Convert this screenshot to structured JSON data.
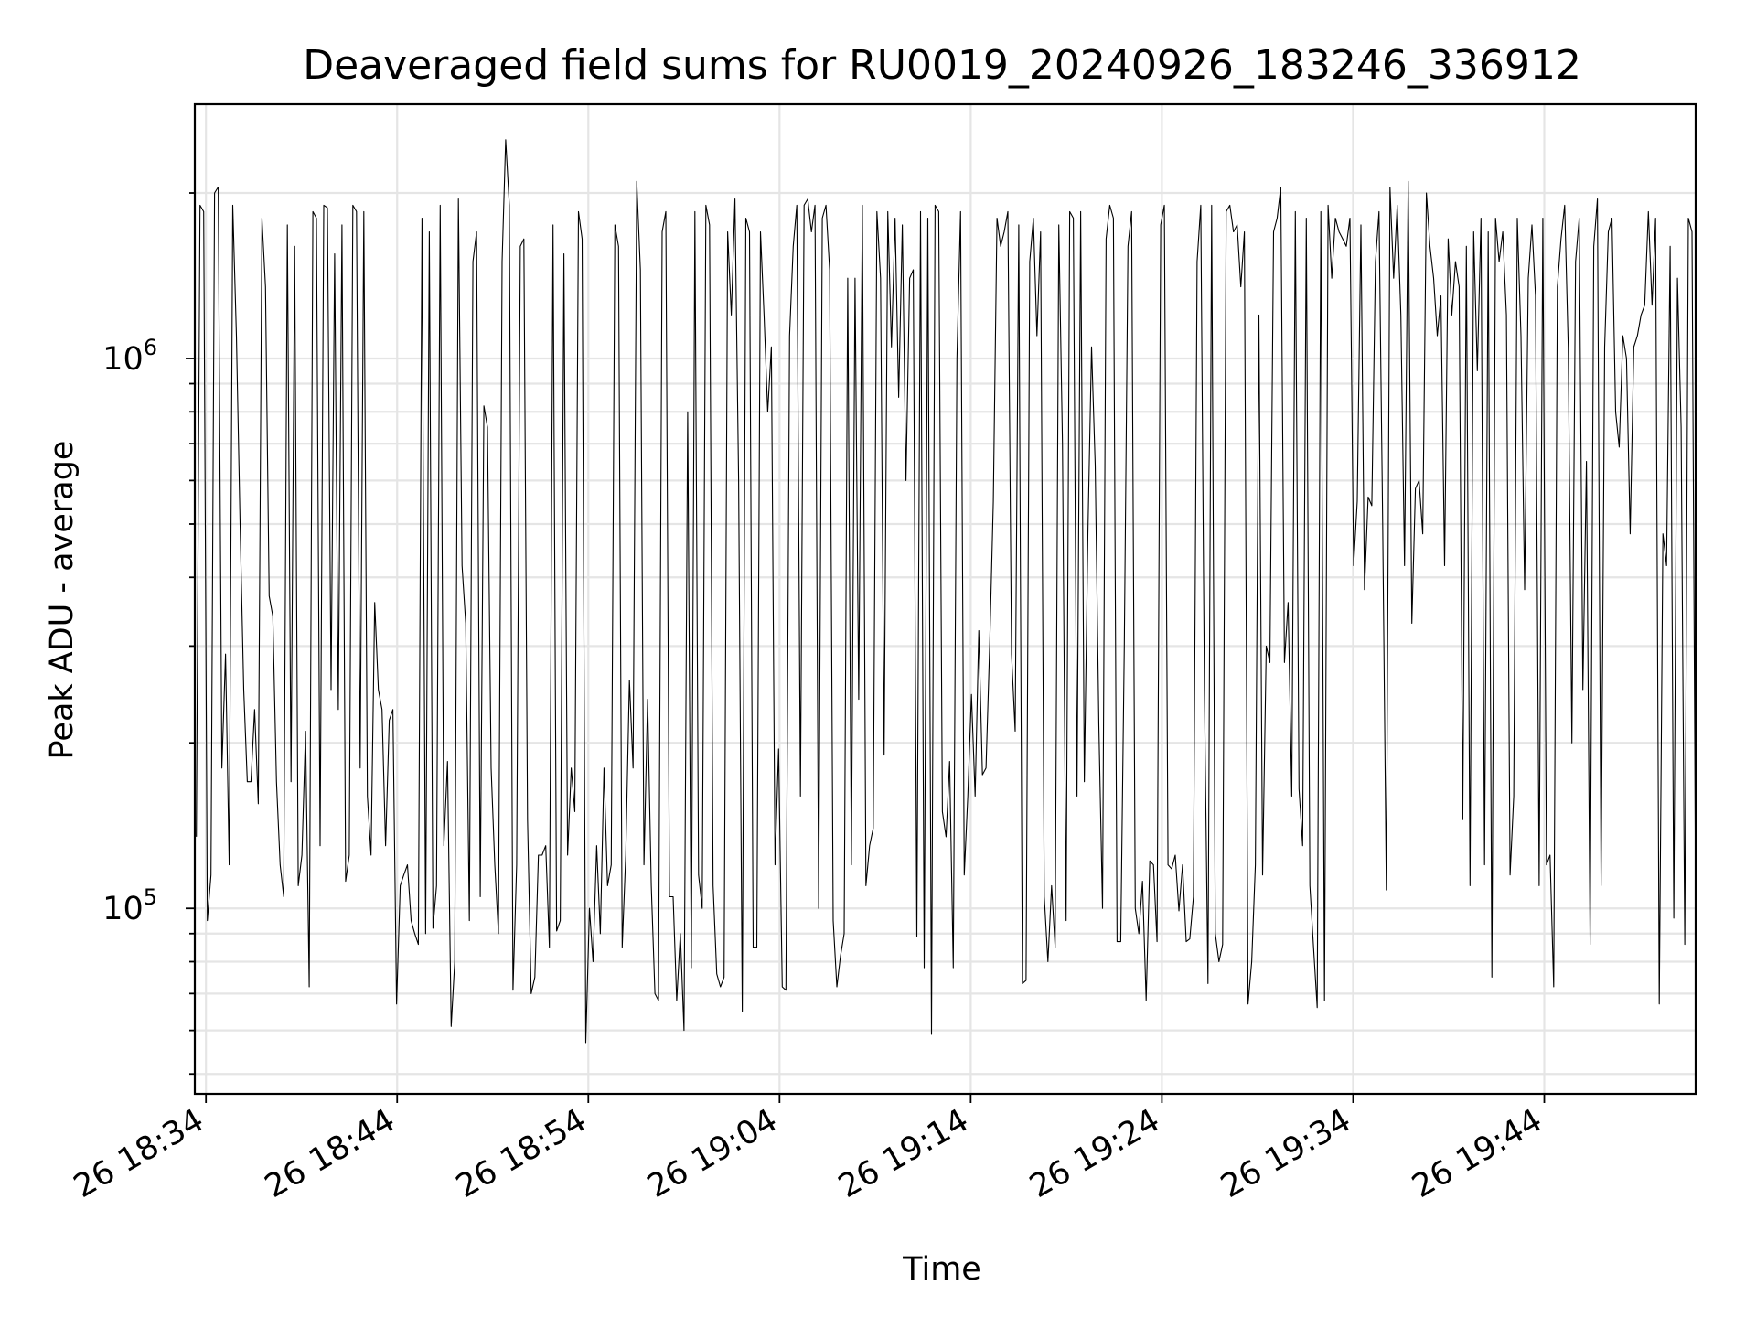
{
  "chart_data": {
    "type": "line",
    "title": "Deaveraged field sums for RU0019_20240926_183246_336912",
    "xlabel": "Time",
    "ylabel": "Peak ADU - average",
    "yscale": "log",
    "ylim": [
      46000,
      2900000
    ],
    "x_range": [
      "2024-09-26 18:33:25",
      "2024-09-26 19:51:55"
    ],
    "grid": true,
    "x_ticks": [
      "26 18:34",
      "26 18:44",
      "26 18:54",
      "26 19:04",
      "26 19:14",
      "26 19:24",
      "26 19:34",
      "26 19:44"
    ],
    "y_ticks": [
      {
        "base": "10",
        "exp": "5",
        "value": 100000
      },
      {
        "base": "10",
        "exp": "6",
        "value": 1000000
      }
    ],
    "series": [
      {
        "color": "#000000",
        "x_start": "2024-09-26 18:33:30",
        "x_end": "2024-09-26 19:51:55",
        "values": [
          135000,
          1900000,
          1850000,
          95000,
          115000,
          2000000,
          2050000,
          180000,
          290000,
          120000,
          1900000,
          1100000,
          500000,
          250000,
          170000,
          170000,
          230000,
          155000,
          1800000,
          1350000,
          370000,
          340000,
          170000,
          120000,
          105000,
          1750000,
          170000,
          1600000,
          110000,
          125000,
          210000,
          72000,
          1850000,
          1800000,
          130000,
          1900000,
          1880000,
          250000,
          1550000,
          230000,
          1750000,
          112000,
          125000,
          1900000,
          1850000,
          180000,
          1850000,
          160000,
          125000,
          360000,
          250000,
          230000,
          130000,
          220000,
          230000,
          67000,
          110000,
          115000,
          120000,
          95000,
          90000,
          86000,
          1800000,
          90000,
          1700000,
          92000,
          110000,
          1900000,
          130000,
          185000,
          61000,
          80000,
          1950000,
          420000,
          330000,
          95000,
          1500000,
          1700000,
          105000,
          820000,
          750000,
          180000,
          120000,
          90000,
          1500000,
          2500000,
          1900000,
          71000,
          120000,
          1600000,
          1650000,
          145000,
          70000,
          75000,
          125000,
          125000,
          130000,
          85000,
          1750000,
          91000,
          95000,
          1550000,
          125000,
          180000,
          150000,
          1850000,
          1650000,
          57000,
          100000,
          80000,
          130000,
          90000,
          180000,
          110000,
          120000,
          1750000,
          1600000,
          85000,
          125000,
          260000,
          180000,
          2100000,
          1450000,
          120000,
          240000,
          110000,
          70000,
          68000,
          1700000,
          1850000,
          105000,
          105000,
          68000,
          90000,
          60000,
          800000,
          78000,
          1850000,
          115000,
          100000,
          1900000,
          1750000,
          110000,
          76000,
          72000,
          75000,
          1700000,
          1200000,
          1950000,
          600000,
          65000,
          1800000,
          1700000,
          85000,
          85000,
          1700000,
          1200000,
          800000,
          1050000,
          120000,
          195000,
          72000,
          71000,
          1100000,
          1600000,
          1900000,
          160000,
          1900000,
          1950000,
          1700000,
          1900000,
          100000,
          1800000,
          1900000,
          1450000,
          95000,
          72000,
          82000,
          90000,
          1400000,
          120000,
          1400000,
          240000,
          1900000,
          110000,
          130000,
          140000,
          1850000,
          1400000,
          190000,
          1850000,
          1050000,
          1800000,
          850000,
          1750000,
          600000,
          1400000,
          1450000,
          89000,
          1850000,
          78000,
          1800000,
          59000,
          1900000,
          1850000,
          150000,
          135000,
          185000,
          78000,
          1000000,
          1850000,
          115000,
          160000,
          245000,
          160000,
          320000,
          175000,
          180000,
          300000,
          550000,
          1800000,
          1600000,
          1700000,
          1850000,
          290000,
          210000,
          1750000,
          73000,
          74000,
          1500000,
          1800000,
          1100000,
          1700000,
          105000,
          80000,
          110000,
          85000,
          1750000,
          700000,
          95000,
          1850000,
          1800000,
          160000,
          1850000,
          170000,
          480000,
          1050000,
          640000,
          215000,
          100000,
          1650000,
          1900000,
          1800000,
          87000,
          87000,
          300000,
          1600000,
          1850000,
          100000,
          90000,
          112000,
          68000,
          122000,
          120000,
          87000,
          1750000,
          1900000,
          120000,
          118000,
          125000,
          99000,
          120000,
          87000,
          88000,
          105000,
          1500000,
          1900000,
          250000,
          73000,
          1900000,
          90000,
          80000,
          86000,
          1850000,
          1900000,
          1700000,
          1750000,
          1350000,
          1700000,
          67000,
          80000,
          120000,
          1200000,
          115000,
          300000,
          280000,
          1700000,
          1800000,
          2050000,
          280000,
          360000,
          160000,
          1850000,
          165000,
          130000,
          1800000,
          110000,
          85000,
          66000,
          1850000,
          68000,
          1900000,
          1400000,
          1800000,
          1700000,
          1650000,
          1600000,
          1800000,
          420000,
          550000,
          1750000,
          380000,
          560000,
          540000,
          1500000,
          1850000,
          500000,
          108000,
          2050000,
          1400000,
          1900000,
          1200000,
          420000,
          2100000,
          330000,
          580000,
          600000,
          480000,
          2000000,
          1600000,
          1400000,
          1100000,
          1300000,
          420000,
          1650000,
          1200000,
          1500000,
          1350000,
          145000,
          1600000,
          110000,
          1700000,
          950000,
          1800000,
          120000,
          1700000,
          75000,
          1800000,
          1500000,
          1700000,
          1200000,
          115000,
          160000,
          1800000,
          1100000,
          380000,
          1400000,
          1750000,
          1300000,
          110000,
          1800000,
          120000,
          125000,
          72000,
          1350000,
          1650000,
          1900000,
          1050000,
          200000,
          1500000,
          1800000,
          250000,
          650000,
          86000,
          1600000,
          1950000,
          110000,
          1050000,
          1700000,
          1800000,
          800000,
          690000,
          1100000,
          1000000,
          480000,
          1050000,
          1100000,
          1200000,
          1250000,
          1850000,
          1250000,
          1800000,
          67000,
          480000,
          420000,
          1600000,
          96000,
          1400000,
          750000,
          86000,
          1800000,
          1700000,
          100000
        ]
      }
    ]
  }
}
